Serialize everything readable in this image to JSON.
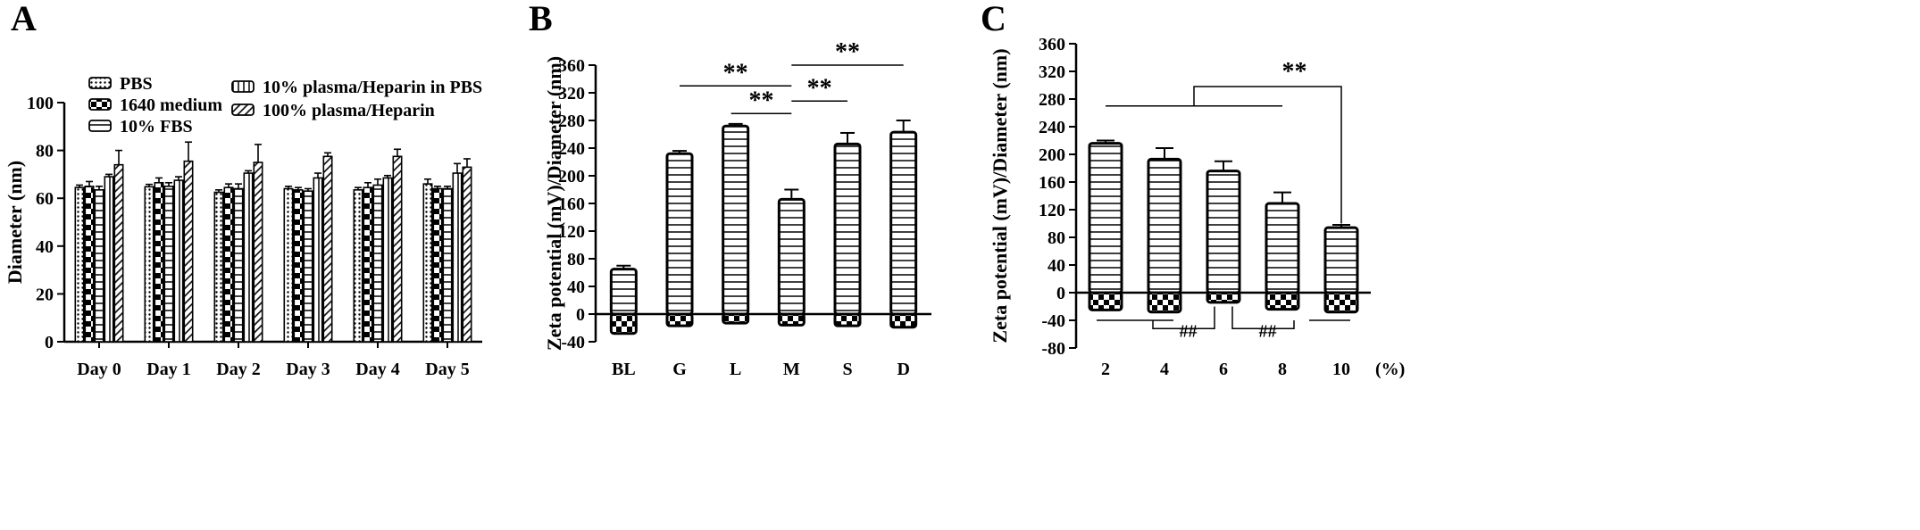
{
  "chart_data": [
    {
      "panel": "A",
      "type": "bar",
      "xlabel": "",
      "ylabel": "Diameter (nm)",
      "ylim": [
        0,
        100
      ],
      "yticks": [
        0,
        20,
        40,
        60,
        80,
        100
      ],
      "categories": [
        "Day 0",
        "Day 1",
        "Day 2",
        "Day 3",
        "Day 4",
        "Day 5"
      ],
      "series": [
        {
          "name": "PBS",
          "pattern": "dots",
          "values": [
            64.5,
            64.8,
            62.5,
            64.0,
            63.5,
            66.0
          ],
          "errors": [
            1.0,
            1.0,
            1.0,
            1.0,
            1.0,
            2.0
          ]
        },
        {
          "name": "1640 medium",
          "pattern": "checker",
          "values": [
            65.0,
            66.5,
            64.5,
            63.5,
            64.5,
            64.0
          ],
          "errors": [
            2.0,
            2.0,
            1.5,
            1.0,
            2.0,
            1.0
          ]
        },
        {
          "name": "10% FBS",
          "pattern": "hlines",
          "values": [
            63.5,
            65.0,
            64.0,
            63.0,
            65.5,
            64.0
          ],
          "errors": [
            1.5,
            1.5,
            2.0,
            1.0,
            2.5,
            1.0
          ]
        },
        {
          "name": "10% plasma/Heparin in PBS",
          "pattern": "vlines",
          "values": [
            69.0,
            67.5,
            70.5,
            68.5,
            68.5,
            70.5
          ],
          "errors": [
            1.0,
            1.5,
            1.0,
            2.0,
            1.0,
            4.0
          ]
        },
        {
          "name": "100% plasma/Heparin",
          "pattern": "diag",
          "values": [
            74.0,
            75.5,
            75.0,
            77.5,
            77.5,
            73.0
          ],
          "errors": [
            6.0,
            8.0,
            7.5,
            1.5,
            3.0,
            3.5
          ]
        }
      ],
      "legend": "top"
    },
    {
      "panel": "B",
      "type": "bar",
      "xlabel": "",
      "ylabel": "Zeta potential (mV)/Diameter (nm)",
      "ylim": [
        -40,
        360
      ],
      "yticks": [
        -40,
        0,
        40,
        80,
        120,
        160,
        200,
        240,
        280,
        320,
        360
      ],
      "categories": [
        "BL",
        "G",
        "L",
        "M",
        "S",
        "D"
      ],
      "series": [
        {
          "measure": "diameter",
          "pattern": "hlines",
          "values": [
            65,
            232,
            272,
            166,
            246,
            263
          ],
          "errors": [
            5,
            4,
            3,
            14,
            16,
            17
          ]
        },
        {
          "measure": "zeta",
          "pattern": "checker",
          "values": [
            -28,
            -17,
            -13,
            -16,
            -17,
            -19
          ],
          "errors": [
            1,
            1,
            1,
            1,
            1,
            1
          ]
        }
      ],
      "significance": [
        {
          "label": "**",
          "from": "G",
          "to": "M",
          "y": 330
        },
        {
          "label": "**",
          "from": "L",
          "to": "M",
          "y": 290
        },
        {
          "label": "**",
          "from": "M",
          "to": "D",
          "y": 360
        },
        {
          "label": "**",
          "from": "M",
          "to": "S",
          "y": 308
        }
      ]
    },
    {
      "panel": "C",
      "type": "bar",
      "xlabel": "(%)",
      "ylabel": "Zeta potential (mV)/Diameter (nm)",
      "ylim": [
        -80,
        360
      ],
      "yticks": [
        -80,
        -40,
        0,
        40,
        80,
        120,
        160,
        200,
        240,
        280,
        320,
        360
      ],
      "categories": [
        "2",
        "4",
        "6",
        "8",
        "10"
      ],
      "series": [
        {
          "measure": "diameter",
          "pattern": "hlines",
          "values": [
            216,
            193,
            176,
            129,
            94
          ],
          "errors": [
            4,
            16,
            14,
            16,
            4
          ]
        },
        {
          "measure": "zeta",
          "pattern": "checker",
          "values": [
            -25,
            -28,
            -14,
            -24,
            -28
          ],
          "errors": [
            1,
            1,
            1,
            1,
            1
          ]
        }
      ],
      "significance": [
        {
          "label": "**",
          "type": "bracket",
          "y": 270
        },
        {
          "label": "##",
          "type": "bracket-below",
          "y": -60
        },
        {
          "label": "##",
          "type": "bracket-below",
          "y": -60
        }
      ]
    }
  ],
  "panel_labels": [
    "A",
    "B",
    "C"
  ]
}
